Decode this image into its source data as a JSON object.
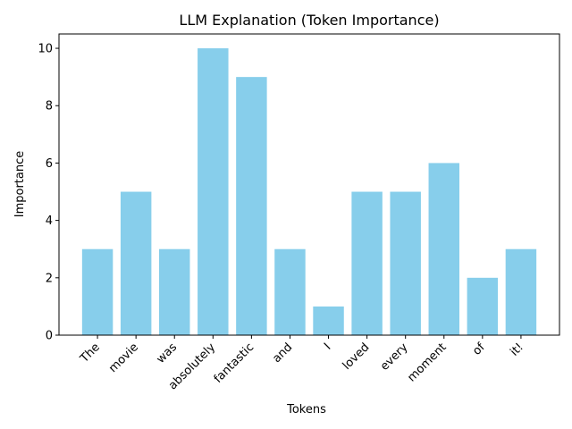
{
  "chart_data": {
    "type": "bar",
    "title": "LLM Explanation (Token Importance)",
    "xlabel": "Tokens",
    "ylabel": "Importance",
    "categories": [
      "The",
      "movie",
      "was",
      "absolutely",
      "fantastic",
      "and",
      "I",
      "loved",
      "every",
      "moment",
      "of",
      "it!"
    ],
    "values": [
      3,
      5,
      3,
      10,
      9,
      3,
      1,
      5,
      5,
      6,
      2,
      3
    ],
    "ylim": [
      0,
      10.5
    ],
    "yticks": [
      0,
      2,
      4,
      6,
      8,
      10
    ],
    "bar_color": "#87ceeb",
    "grid": false,
    "legend": "none",
    "xtick_rotation": "45 degrees"
  }
}
